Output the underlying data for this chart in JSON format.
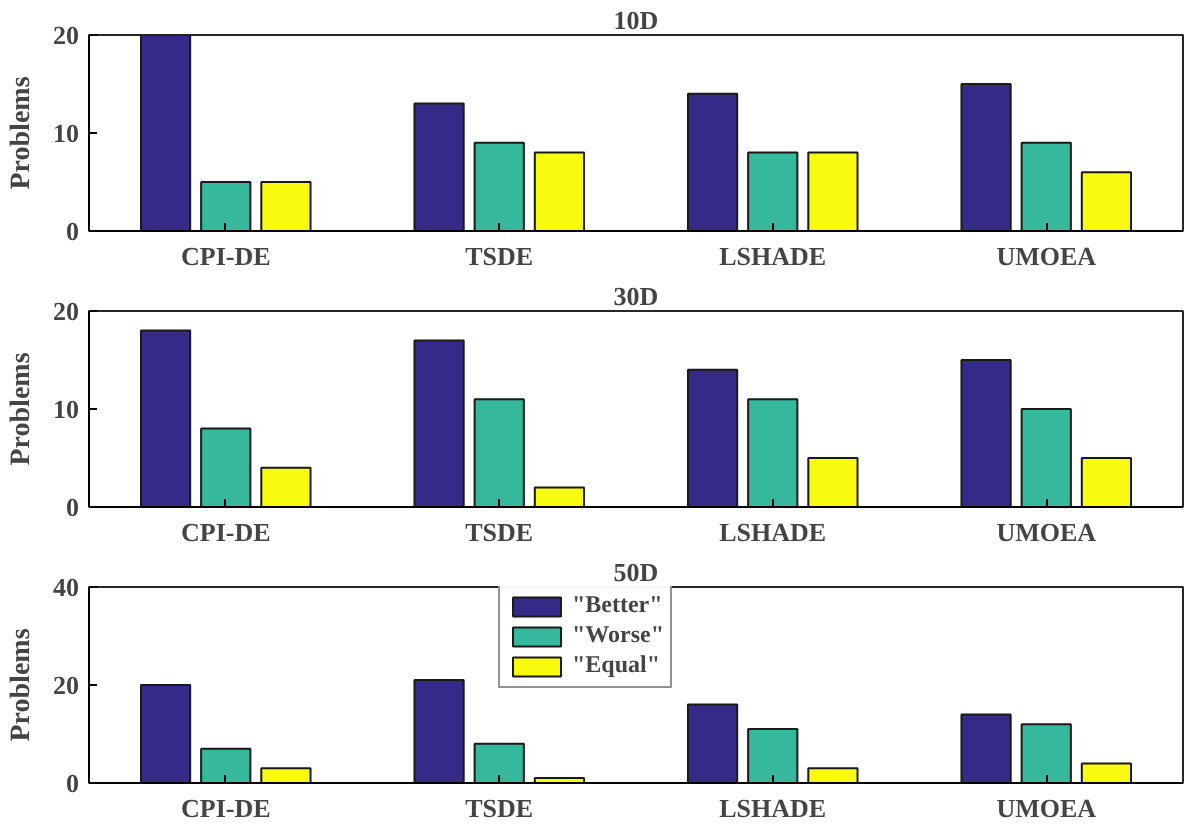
{
  "chart_data": [
    {
      "type": "bar",
      "title": "10D",
      "ylabel": "Problems",
      "categories": [
        "CPI-DE",
        "TSDE",
        "LSHADE",
        "UMOEA"
      ],
      "ylim": [
        0,
        20
      ],
      "yticks": [
        0,
        10,
        20
      ],
      "grid": false,
      "legend": false,
      "series": [
        {
          "color": "#352a87",
          "values": [
            20,
            13,
            14,
            15
          ]
        },
        {
          "color": "#36b89d",
          "values": [
            5,
            9,
            8,
            9
          ]
        },
        {
          "color": "#f9fb0e",
          "values": [
            5,
            8,
            8,
            6
          ]
        }
      ]
    },
    {
      "type": "bar",
      "title": "30D",
      "ylabel": "Problems",
      "categories": [
        "CPI-DE",
        "TSDE",
        "LSHADE",
        "UMOEA"
      ],
      "ylim": [
        0,
        20
      ],
      "yticks": [
        0,
        10,
        20
      ],
      "grid": false,
      "legend": false,
      "series": [
        {
          "color": "#352a87",
          "values": [
            18,
            17,
            14,
            15
          ]
        },
        {
          "color": "#36b89d",
          "values": [
            8,
            11,
            11,
            10
          ]
        },
        {
          "color": "#f9fb0e",
          "values": [
            4,
            2,
            5,
            5
          ]
        }
      ]
    },
    {
      "type": "bar",
      "title": "50D",
      "ylabel": "Problems",
      "categories": [
        "CPI-DE",
        "TSDE",
        "LSHADE",
        "UMOEA"
      ],
      "ylim": [
        0,
        40
      ],
      "yticks": [
        0,
        20,
        40
      ],
      "grid": false,
      "legend": "top",
      "series": [
        {
          "name": "\"Better\"",
          "color": "#352a87",
          "values": [
            20,
            21,
            16,
            14
          ]
        },
        {
          "name": "\"Worse\"",
          "color": "#36b89d",
          "values": [
            7,
            8,
            11,
            12
          ]
        },
        {
          "name": "\"Equal\"",
          "color": "#f9fb0e",
          "values": [
            3,
            1,
            3,
            4
          ]
        }
      ]
    }
  ]
}
